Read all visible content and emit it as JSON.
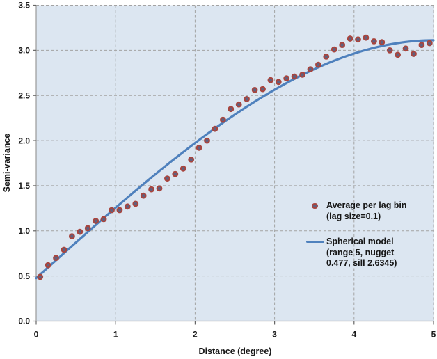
{
  "figure": {
    "x_axis_title": "Distance (degree)",
    "y_axis_title": "Semi-variance"
  },
  "legend": {
    "items": [
      {
        "name": "Average per lag bin (lag size=0.1)",
        "label_lines": [
          "Average per lag bin",
          "(lag size=0.1)"
        ]
      },
      {
        "name": "Spherical model (range 5, nugget 0.477, sill 2.6345)",
        "label_lines": [
          "Spherical model",
          "(range 5, nugget",
          "0.477, sill 2.6345)"
        ]
      }
    ]
  },
  "chart_data": {
    "type": "scatter",
    "title": "",
    "xlabel": "Distance (degree)",
    "ylabel": "Semi-variance",
    "xlim": [
      0,
      5
    ],
    "ylim": [
      0,
      3.5
    ],
    "x_ticks": [
      0,
      1,
      2,
      3,
      4,
      5
    ],
    "x_tick_labels": [
      "0",
      "1",
      "2",
      "3",
      "4",
      "5"
    ],
    "y_ticks": [
      0,
      0.5,
      1,
      1.5,
      2,
      2.5,
      3,
      3.5
    ],
    "y_tick_labels": [
      "0.0",
      "0.5",
      "1.0",
      "1.5",
      "2.0",
      "2.5",
      "3.0",
      "3.5"
    ],
    "grid": "dashed",
    "legend_position": "inside-right",
    "series": [
      {
        "name": "Average per lag bin (lag size=0.1)",
        "type": "scatter",
        "lag_size": 0.1,
        "points": [
          [
            0.05,
            0.49
          ],
          [
            0.15,
            0.62
          ],
          [
            0.25,
            0.7
          ],
          [
            0.35,
            0.79
          ],
          [
            0.45,
            0.94
          ],
          [
            0.55,
            0.99
          ],
          [
            0.65,
            1.03
          ],
          [
            0.75,
            1.11
          ],
          [
            0.85,
            1.13
          ],
          [
            0.95,
            1.23
          ],
          [
            1.05,
            1.23
          ],
          [
            1.15,
            1.27
          ],
          [
            1.25,
            1.3
          ],
          [
            1.35,
            1.39
          ],
          [
            1.45,
            1.46
          ],
          [
            1.55,
            1.47
          ],
          [
            1.65,
            1.58
          ],
          [
            1.75,
            1.63
          ],
          [
            1.85,
            1.69
          ],
          [
            1.95,
            1.79
          ],
          [
            2.05,
            1.92
          ],
          [
            2.15,
            2.0
          ],
          [
            2.25,
            2.13
          ],
          [
            2.35,
            2.23
          ],
          [
            2.45,
            2.35
          ],
          [
            2.55,
            2.4
          ],
          [
            2.65,
            2.46
          ],
          [
            2.75,
            2.56
          ],
          [
            2.85,
            2.57
          ],
          [
            2.95,
            2.67
          ],
          [
            3.05,
            2.65
          ],
          [
            3.15,
            2.69
          ],
          [
            3.25,
            2.71
          ],
          [
            3.35,
            2.73
          ],
          [
            3.45,
            2.79
          ],
          [
            3.55,
            2.84
          ],
          [
            3.65,
            2.93
          ],
          [
            3.75,
            3.01
          ],
          [
            3.85,
            3.06
          ],
          [
            3.95,
            3.13
          ],
          [
            4.05,
            3.12
          ],
          [
            4.15,
            3.14
          ],
          [
            4.25,
            3.1
          ],
          [
            4.35,
            3.09
          ],
          [
            4.45,
            3.0
          ],
          [
            4.55,
            2.95
          ],
          [
            4.65,
            3.02
          ],
          [
            4.75,
            2.96
          ],
          [
            4.85,
            3.06
          ],
          [
            4.95,
            3.08
          ]
        ]
      },
      {
        "name": "Spherical model (range 5, nugget 0.477, sill 2.6345)",
        "type": "line",
        "model": "spherical",
        "range": 5,
        "nugget": 0.477,
        "sill": 2.6345
      }
    ],
    "colors": {
      "model_line": "#4f81bd",
      "marker_ring": "#a8453e",
      "marker_fill": "#60607f",
      "plot_bg": "#dce6f1",
      "gridline": "#a3a3a3",
      "axis_line": "#9a9a9a",
      "tick": "#666666",
      "text": "#1a1a1a"
    }
  }
}
